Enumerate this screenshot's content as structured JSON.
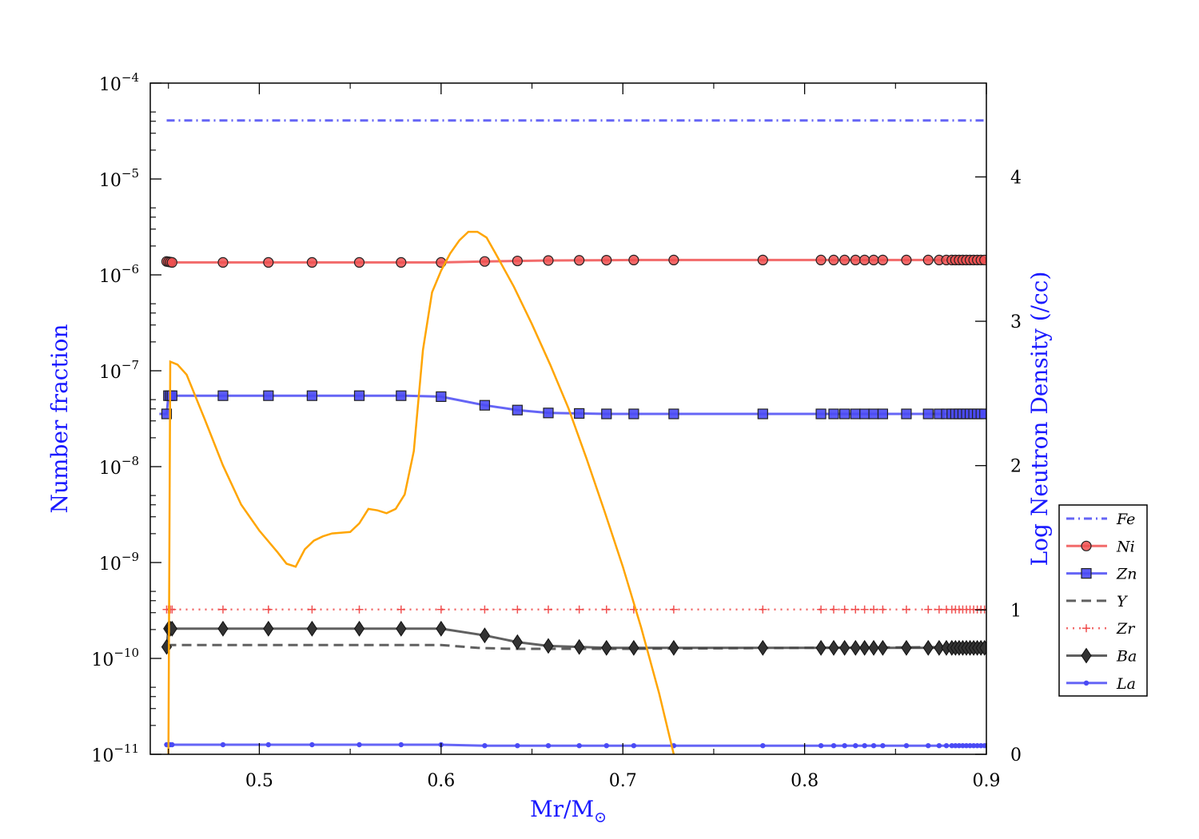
{
  "chart_data": {
    "type": "line",
    "xlabel": "Mr/M",
    "xlabel_sub": "⊙",
    "ylabel_left": "Number fraction",
    "ylabel_right": "Log Neutron Density (/cc)",
    "xlim": [
      0.44,
      0.9
    ],
    "ylim_left": [
      -11,
      -4
    ],
    "y_left_scale": "log",
    "ylim_right": [
      0,
      4.65
    ],
    "x_ticks": [
      0.5,
      0.6,
      0.7,
      0.8,
      0.9
    ],
    "x_tick_labels": [
      "0.5",
      "0.6",
      "0.7",
      "0.8",
      "0.9"
    ],
    "y_left_ticks": [
      -4,
      -5,
      -6,
      -7,
      -8,
      -9,
      -10,
      -11
    ],
    "y_left_tick_base": "10",
    "y_left_tick_exps": [
      "−4",
      "−5",
      "−6",
      "−7",
      "−8",
      "−9",
      "−10",
      "−11"
    ],
    "y_right_ticks": [
      0,
      1,
      2,
      3,
      4
    ],
    "y_right_tick_labels": [
      "0",
      "1",
      "2",
      "3",
      "4"
    ],
    "legend_position": "right",
    "grid": false,
    "marker_x": [
      0.449,
      0.45,
      0.451,
      0.452,
      0.48,
      0.505,
      0.529,
      0.555,
      0.578,
      0.6,
      0.624,
      0.642,
      0.659,
      0.676,
      0.691,
      0.706,
      0.728,
      0.777,
      0.809,
      0.816,
      0.822,
      0.828,
      0.833,
      0.838,
      0.843,
      0.856,
      0.868,
      0.874,
      0.878,
      0.881,
      0.883,
      0.885,
      0.887,
      0.889,
      0.891,
      0.893,
      0.895,
      0.897,
      0.899
    ],
    "series": [
      {
        "name": "Fe",
        "color": "#4a4af5",
        "style": "dashdot",
        "marker": "none",
        "points": [
          [
            0.449,
            -4.39
          ],
          [
            0.9,
            -4.39
          ]
        ]
      },
      {
        "name": "Ni",
        "color": "#f05050",
        "style": "solid",
        "marker": "circle",
        "points": [
          [
            0.449,
            -5.86
          ],
          [
            0.452,
            -5.87
          ],
          [
            0.6,
            -5.87
          ],
          [
            0.624,
            -5.86
          ],
          [
            0.659,
            -5.85
          ],
          [
            0.706,
            -5.845
          ],
          [
            0.9,
            -5.845
          ]
        ]
      },
      {
        "name": "Zn",
        "color": "#4a4af5",
        "style": "solid",
        "marker": "square",
        "points": [
          [
            0.445,
            -7.45
          ],
          [
            0.449,
            -7.45
          ],
          [
            0.45,
            -7.26
          ],
          [
            0.58,
            -7.26
          ],
          [
            0.6,
            -7.27
          ],
          [
            0.624,
            -7.36
          ],
          [
            0.642,
            -7.41
          ],
          [
            0.659,
            -7.44
          ],
          [
            0.691,
            -7.45
          ],
          [
            0.9,
            -7.45
          ]
        ]
      },
      {
        "name": "Y",
        "color": "#444444",
        "style": "dashed",
        "marker": "none",
        "points": [
          [
            0.449,
            -9.86
          ],
          [
            0.6,
            -9.86
          ],
          [
            0.62,
            -9.89
          ],
          [
            0.64,
            -9.9
          ],
          [
            0.7,
            -9.9
          ],
          [
            0.9,
            -9.88
          ]
        ]
      },
      {
        "name": "Zr",
        "color": "#f05050",
        "style": "dotted",
        "marker": "plus",
        "points": [
          [
            0.449,
            -9.49
          ],
          [
            0.9,
            -9.49
          ]
        ]
      },
      {
        "name": "Ba",
        "color": "#444444",
        "style": "solid",
        "marker": "diamond",
        "points": [
          [
            0.449,
            -9.88
          ],
          [
            0.45,
            -9.69
          ],
          [
            0.6,
            -9.69
          ],
          [
            0.624,
            -9.76
          ],
          [
            0.642,
            -9.83
          ],
          [
            0.659,
            -9.87
          ],
          [
            0.691,
            -9.89
          ],
          [
            0.9,
            -9.89
          ]
        ]
      },
      {
        "name": "La",
        "color": "#4a4af5",
        "style": "solid",
        "marker": "dot",
        "points": [
          [
            0.449,
            -10.9
          ],
          [
            0.6,
            -10.9
          ],
          [
            0.624,
            -10.91
          ],
          [
            0.9,
            -10.91
          ]
        ]
      }
    ],
    "neutron_density": {
      "name": "",
      "color": "#ffa500",
      "axis": "right",
      "points": [
        [
          0.45,
          0
        ],
        [
          0.451,
          2.72
        ],
        [
          0.455,
          2.7
        ],
        [
          0.46,
          2.63
        ],
        [
          0.47,
          2.32
        ],
        [
          0.48,
          2.0
        ],
        [
          0.49,
          1.73
        ],
        [
          0.5,
          1.55
        ],
        [
          0.51,
          1.4
        ],
        [
          0.515,
          1.32
        ],
        [
          0.52,
          1.3
        ],
        [
          0.525,
          1.42
        ],
        [
          0.53,
          1.48
        ],
        [
          0.535,
          1.51
        ],
        [
          0.54,
          1.53
        ],
        [
          0.55,
          1.54
        ],
        [
          0.555,
          1.6
        ],
        [
          0.56,
          1.7
        ],
        [
          0.565,
          1.69
        ],
        [
          0.57,
          1.67
        ],
        [
          0.575,
          1.7
        ],
        [
          0.58,
          1.8
        ],
        [
          0.585,
          2.1
        ],
        [
          0.59,
          2.8
        ],
        [
          0.595,
          3.2
        ],
        [
          0.6,
          3.35
        ],
        [
          0.605,
          3.47
        ],
        [
          0.61,
          3.56
        ],
        [
          0.615,
          3.62
        ],
        [
          0.62,
          3.62
        ],
        [
          0.625,
          3.58
        ],
        [
          0.63,
          3.47
        ],
        [
          0.64,
          3.24
        ],
        [
          0.65,
          2.98
        ],
        [
          0.66,
          2.7
        ],
        [
          0.67,
          2.4
        ],
        [
          0.68,
          2.05
        ],
        [
          0.69,
          1.68
        ],
        [
          0.7,
          1.3
        ],
        [
          0.71,
          0.88
        ],
        [
          0.72,
          0.42
        ],
        [
          0.728,
          0
        ]
      ]
    },
    "legend_entries": [
      "Fe",
      "Ni",
      "Zn",
      "Y",
      "Zr",
      "Ba",
      "La"
    ]
  }
}
